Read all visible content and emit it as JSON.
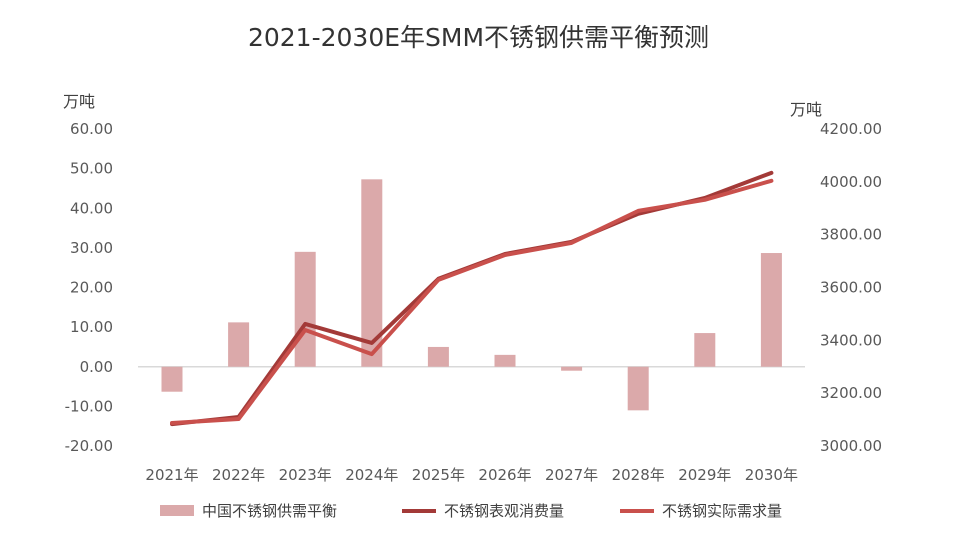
{
  "chart_data": {
    "type": "bar+line",
    "title": "2021-2030E年SMM不锈钢供需平衡预测",
    "left_axis": {
      "unit": "万吨",
      "ylim": [
        -20,
        60
      ],
      "ticks": [
        "60.00",
        "50.00",
        "40.00",
        "30.00",
        "20.00",
        "10.00",
        "0.00",
        "-10.00",
        "-20.00"
      ],
      "negative_tick_color": "#ff0000"
    },
    "right_axis": {
      "unit": "万吨",
      "ylim": [
        3000,
        4200
      ],
      "ticks": [
        "4200.00",
        "4000.00",
        "3800.00",
        "3600.00",
        "3400.00",
        "3200.00",
        "3000.00"
      ]
    },
    "categories": [
      "2021年",
      "2022年",
      "2023年",
      "2024年",
      "2025年",
      "2026年",
      "2027年",
      "2028年",
      "2029年",
      "2030年"
    ],
    "series": [
      {
        "name": "中国不锈钢供需平衡",
        "type": "bar",
        "axis": "left",
        "color": "#dba9aa",
        "values": [
          -6.3,
          11.2,
          29.0,
          47.3,
          5.0,
          3.0,
          -1.0,
          -11.0,
          8.5,
          28.7
        ]
      },
      {
        "name": "不锈钢表观消费量",
        "type": "line",
        "axis": "right",
        "color": "#a33a38",
        "values": [
          3083,
          3110,
          3462,
          3390,
          3633,
          3727,
          3773,
          3879,
          3939,
          4034
        ]
      },
      {
        "name": "不锈钢实际需求量",
        "type": "line",
        "axis": "right",
        "color": "#c9504c",
        "values": [
          3087,
          3102,
          3439,
          3348,
          3629,
          3723,
          3769,
          3890,
          3932,
          4004
        ]
      }
    ],
    "grid": false,
    "legend": "bottom"
  }
}
